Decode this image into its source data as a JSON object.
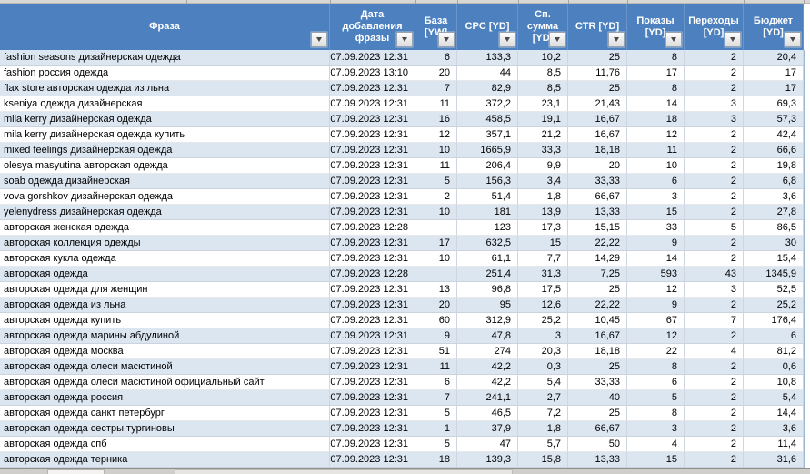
{
  "table": {
    "columns": [
      {
        "id": "phrase",
        "label": "Фраза"
      },
      {
        "id": "date_added",
        "label": "Дата\nдобавления\nфразы"
      },
      {
        "id": "base_yw",
        "label": "База\n[YW]"
      },
      {
        "id": "cpc_yd",
        "label": "CPC [YD]"
      },
      {
        "id": "avg_sum_yd",
        "label": "Сп.\nсумма\n[YD]"
      },
      {
        "id": "ctr_yd",
        "label": "CTR [YD]"
      },
      {
        "id": "shows_yd",
        "label": "Показы\n[YD]"
      },
      {
        "id": "clicks_yd",
        "label": "Переходы\n[YD]"
      },
      {
        "id": "budget_yd",
        "label": "Бюджет\n[YD]"
      }
    ],
    "rows": [
      [
        "fashion seasons дизайнерская одежда",
        "07.09.2023 12:31",
        "6",
        "133,3",
        "10,2",
        "25",
        "8",
        "2",
        "20,4"
      ],
      [
        "fashion россия одежда",
        "07.09.2023 13:10",
        "20",
        "44",
        "8,5",
        "11,76",
        "17",
        "2",
        "17"
      ],
      [
        "flax store авторская одежда из льна",
        "07.09.2023 12:31",
        "7",
        "82,9",
        "8,5",
        "25",
        "8",
        "2",
        "17"
      ],
      [
        "kseniya одежда дизайнерская",
        "07.09.2023 12:31",
        "11",
        "372,2",
        "23,1",
        "21,43",
        "14",
        "3",
        "69,3"
      ],
      [
        "mila kerry дизайнерская одежда",
        "07.09.2023 12:31",
        "16",
        "458,5",
        "19,1",
        "16,67",
        "18",
        "3",
        "57,3"
      ],
      [
        "mila kerry дизайнерская одежда купить",
        "07.09.2023 12:31",
        "12",
        "357,1",
        "21,2",
        "16,67",
        "12",
        "2",
        "42,4"
      ],
      [
        "mixed feelings дизайнерская одежда",
        "07.09.2023 12:31",
        "10",
        "1665,9",
        "33,3",
        "18,18",
        "11",
        "2",
        "66,6"
      ],
      [
        "olesya masyutina авторская одежда",
        "07.09.2023 12:31",
        "11",
        "206,4",
        "9,9",
        "20",
        "10",
        "2",
        "19,8"
      ],
      [
        "soab одежда дизайнерская",
        "07.09.2023 12:31",
        "5",
        "156,3",
        "3,4",
        "33,33",
        "6",
        "2",
        "6,8"
      ],
      [
        "vova gorshkov дизайнерская одежда",
        "07.09.2023 12:31",
        "2",
        "51,4",
        "1,8",
        "66,67",
        "3",
        "2",
        "3,6"
      ],
      [
        "yelenydress дизайнерская одежда",
        "07.09.2023 12:31",
        "10",
        "181",
        "13,9",
        "13,33",
        "15",
        "2",
        "27,8"
      ],
      [
        "авторская женская одежда",
        "07.09.2023 12:28",
        "",
        "123",
        "17,3",
        "15,15",
        "33",
        "5",
        "86,5"
      ],
      [
        "авторская коллекция одежды",
        "07.09.2023 12:31",
        "17",
        "632,5",
        "15",
        "22,22",
        "9",
        "2",
        "30"
      ],
      [
        "авторская кукла одежда",
        "07.09.2023 12:31",
        "10",
        "61,1",
        "7,7",
        "14,29",
        "14",
        "2",
        "15,4"
      ],
      [
        "авторская одежда",
        "07.09.2023 12:28",
        "",
        "251,4",
        "31,3",
        "7,25",
        "593",
        "43",
        "1345,9"
      ],
      [
        "авторская одежда для женщин",
        "07.09.2023 12:31",
        "13",
        "96,8",
        "17,5",
        "25",
        "12",
        "3",
        "52,5"
      ],
      [
        "авторская одежда из льна",
        "07.09.2023 12:31",
        "20",
        "95",
        "12,6",
        "22,22",
        "9",
        "2",
        "25,2"
      ],
      [
        "авторская одежда купить",
        "07.09.2023 12:31",
        "60",
        "312,9",
        "25,2",
        "10,45",
        "67",
        "7",
        "176,4"
      ],
      [
        "авторская одежда марины абдулиной",
        "07.09.2023 12:31",
        "9",
        "47,8",
        "3",
        "16,67",
        "12",
        "2",
        "6"
      ],
      [
        "авторская одежда москва",
        "07.09.2023 12:31",
        "51",
        "274",
        "20,3",
        "18,18",
        "22",
        "4",
        "81,2"
      ],
      [
        "авторская одежда олеси масютиной",
        "07.09.2023 12:31",
        "11",
        "42,2",
        "0,3",
        "25",
        "8",
        "2",
        "0,6"
      ],
      [
        "авторская одежда олеси масютиной официальный сайт",
        "07.09.2023 12:31",
        "6",
        "42,2",
        "5,4",
        "33,33",
        "6",
        "2",
        "10,8"
      ],
      [
        "авторская одежда россия",
        "07.09.2023 12:31",
        "7",
        "241,1",
        "2,7",
        "40",
        "5",
        "2",
        "5,4"
      ],
      [
        "авторская одежда санкт петербург",
        "07.09.2023 12:31",
        "5",
        "46,5",
        "7,2",
        "25",
        "8",
        "2",
        "14,4"
      ],
      [
        "авторская одежда сестры тургиновы",
        "07.09.2023 12:31",
        "1",
        "37,9",
        "1,8",
        "66,67",
        "3",
        "2",
        "3,6"
      ],
      [
        "авторская одежда спб",
        "07.09.2023 12:31",
        "5",
        "47",
        "5,7",
        "50",
        "4",
        "2",
        "11,4"
      ],
      [
        "авторская одежда терника",
        "07.09.2023 12:31",
        "18",
        "139,3",
        "15,8",
        "13,33",
        "15",
        "2",
        "31,6"
      ]
    ]
  },
  "colors": {
    "header_bg": "#4d80bf",
    "header_text": "#ffffff",
    "band_row_bg": "#dce6f1",
    "plain_row_bg": "#ffffff",
    "grid_line": "#cfd6e0"
  },
  "icons": {
    "filter_dropdown": "triangle-down"
  }
}
